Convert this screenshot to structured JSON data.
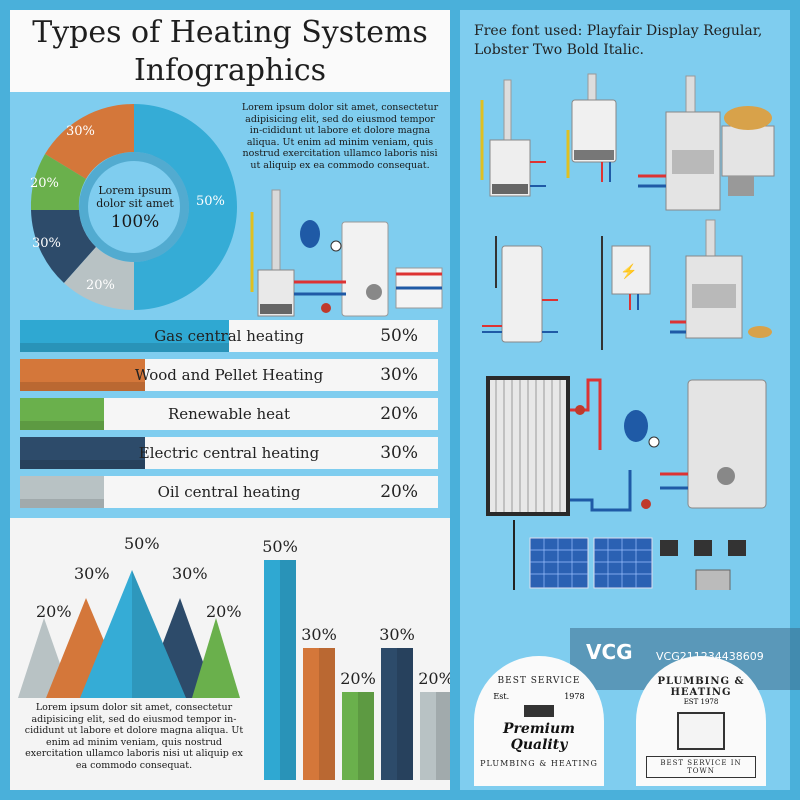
{
  "title_line1": "Types of Heating Systems",
  "title_line2": "Infographics",
  "lorem_top": "Lorem ipsum dolor sit amet, consectetur adipisicing elit, sed do eiusmod tempor in-cididunt ut labore et dolore magna aliqua. Ut enim ad minim veniam, quis nostrud exercitation ullamco laboris nisi ut aliquip ex ea commodo consequat.",
  "lorem_bottom": "Lorem ipsum dolor sit amet, consectetur adipisicing elit, sed do eiusmod tempor in-cididunt ut labore et dolore magna aliqua. Ut enim ad minim veniam, quis nostrud exercitation ullamco laboris nisi ut aliquip ex ea commodo consequat.",
  "donut_center": {
    "line1": "Lorem ipsum",
    "line2": "dolor sit amet",
    "pct": "100%"
  },
  "donut_labels": [
    "30%",
    "20%",
    "30%",
    "20%",
    "50%"
  ],
  "bars": [
    {
      "name": "Gas central heating",
      "pct": "50%",
      "value": 50,
      "color": "#2fa8d2"
    },
    {
      "name": "Wood and Pellet Heating",
      "pct": "30%",
      "value": 30,
      "color": "#d4773a"
    },
    {
      "name": "Renewable heat",
      "pct": "20%",
      "value": 20,
      "color": "#6ab04c"
    },
    {
      "name": "Electric central heating",
      "pct": "30%",
      "value": 30,
      "color": "#2d4b6a"
    },
    {
      "name": "Oil central heating",
      "pct": "20%",
      "value": 20,
      "color": "#b8c2c4"
    }
  ],
  "mountain_labels": [
    "20%",
    "30%",
    "50%",
    "30%",
    "20%"
  ],
  "column_labels": [
    "50%",
    "30%",
    "20%",
    "30%",
    "20%"
  ],
  "font_note_line1": "Free font used: Playfair Display Regular,",
  "font_note_line2": "Lobster Two Bold Italic.",
  "badge1": {
    "top": "BEST SERVICE",
    "est": "Est.",
    "year": "1978",
    "main": "Premium Quality",
    "bottom": "PLUMBING & HEATING"
  },
  "badge2": {
    "top": "PLUMBING & HEATING",
    "est": "EST 1978",
    "bottom": "BEST SERVICE IN TOWN"
  },
  "watermark": {
    "logo": "VCG",
    "id": "VCG211234438609"
  }
}
